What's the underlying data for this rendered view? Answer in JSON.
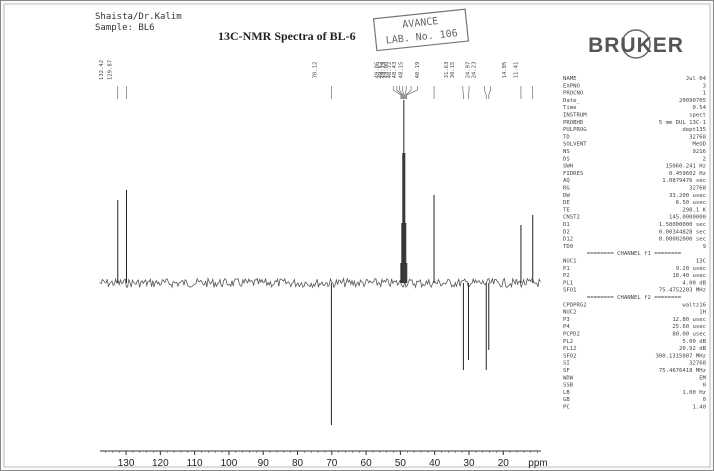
{
  "chart_data": {
    "type": "nmr",
    "title": "13C-NMR Spectra of BL-6",
    "header": [
      "Shaista/Dr.Kalim",
      "Sample: BL6"
    ],
    "x": [
      132.42,
      129.87,
      70.12,
      49.86,
      49.57,
      49.29,
      49.0,
      48.72,
      48.43,
      48.15,
      40.19,
      31.63,
      30.15,
      24.97,
      24.23,
      14.85,
      11.41
    ],
    "x_labels": [
      "132.42",
      "129.87",
      "70.12",
      "49.86",
      "49.57",
      "49.29",
      "49.00",
      "48.72",
      "48.43",
      "48.15",
      "40.19",
      "31.63",
      "30.15",
      "24.97",
      "24.23",
      "14.85",
      "11.41"
    ],
    "values": [
      83,
      93,
      -142,
      20,
      60,
      130,
      183,
      130,
      60,
      20,
      88,
      -87,
      -77,
      -87,
      -67,
      58,
      68
    ],
    "color": "#222222",
    "xlim": [
      137.6,
      9
    ],
    "xticks": [
      130,
      120,
      110,
      100,
      90,
      80,
      70,
      60,
      50,
      40,
      30,
      20
    ],
    "xlabel": "ppm",
    "ylim": [
      -160,
      190
    ]
  },
  "stamp": [
    "AVANCE",
    "LAB. No. 106"
  ],
  "logo": "BRUKER",
  "parameters": [
    [
      "NAME",
      "Jul 04"
    ],
    [
      "EXPNO",
      "3"
    ],
    [
      "PROCNO",
      "1"
    ],
    [
      "Date_",
      "20090705"
    ],
    [
      "Time",
      "0.54"
    ],
    [
      "INSTRUM",
      "spect"
    ],
    [
      "PROBHD",
      "5 mm DUL 13C-1"
    ],
    [
      "PULPROG",
      "dept135"
    ],
    [
      "TD",
      "32768"
    ],
    [
      "SOLVENT",
      "MeOD"
    ],
    [
      "NS",
      "9216"
    ],
    [
      "DS",
      "2"
    ],
    [
      "SWH",
      "15060.241 Hz"
    ],
    [
      "FIDRES",
      "0.459602 Hz"
    ],
    [
      "AQ",
      "1.0879476 sec"
    ],
    [
      "RG",
      "32768"
    ],
    [
      "DW",
      "33.200 usec"
    ],
    [
      "DE",
      "6.50 usec"
    ],
    [
      "TE",
      "298.1 K"
    ],
    [
      "CNST2",
      "145.0000000"
    ],
    [
      "D1",
      "1.50000000 sec"
    ],
    [
      "D2",
      "0.00344828 sec"
    ],
    [
      "D12",
      "0.00002000 sec"
    ],
    [
      "TD0",
      "9"
    ],
    [
      "======== CHANNEL f1 ========"
    ],
    [
      "NUC1",
      "13C"
    ],
    [
      "P1",
      "9.20 usec"
    ],
    [
      "P2",
      "18.40 usec"
    ],
    [
      "PL1",
      "4.00 dB"
    ],
    [
      "SFO1",
      "75.4752203 MHz"
    ],
    [
      "======== CHANNEL f2 ========"
    ],
    [
      "CPDPRG2",
      "waltz16"
    ],
    [
      "NUC2",
      "1H"
    ],
    [
      "P3",
      "12.80 usec"
    ],
    [
      "P4",
      "25.60 usec"
    ],
    [
      "PCPD2",
      "80.00 usec"
    ],
    [
      "PL2",
      "5.00 dB"
    ],
    [
      "PL12",
      "20.92 dB"
    ],
    [
      "SFO2",
      "300.1315007 MHz"
    ],
    [
      "SI",
      "32768"
    ],
    [
      "SF",
      "75.4676418 MHz"
    ],
    [
      "WDW",
      "EM"
    ],
    [
      "SSB",
      "0"
    ],
    [
      "LB",
      "1.00 Hz"
    ],
    [
      "GB",
      "0"
    ],
    [
      "PC",
      "1.40"
    ]
  ]
}
